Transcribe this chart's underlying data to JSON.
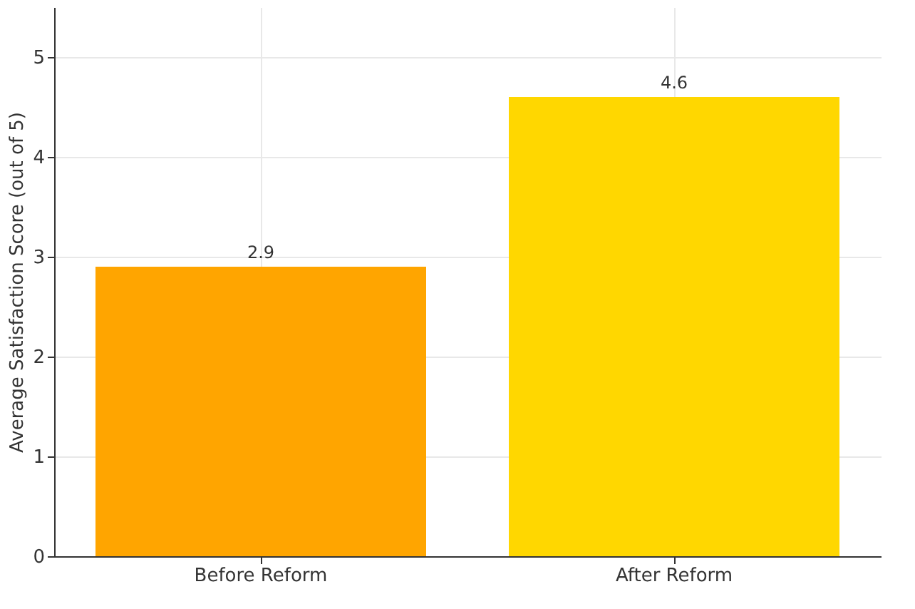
{
  "chart_data": {
    "type": "bar",
    "ylabel": "Average Satisfaction Score (out of 5)",
    "categories": [
      "Before Reform",
      "After Reform"
    ],
    "values": [
      2.9,
      4.6
    ],
    "colors": [
      "#ffa500",
      "#ffd700"
    ],
    "ylim": [
      0,
      5.5
    ],
    "yticks": [
      0,
      1,
      2,
      3,
      4,
      5
    ],
    "grid": true,
    "data_labels": true
  }
}
